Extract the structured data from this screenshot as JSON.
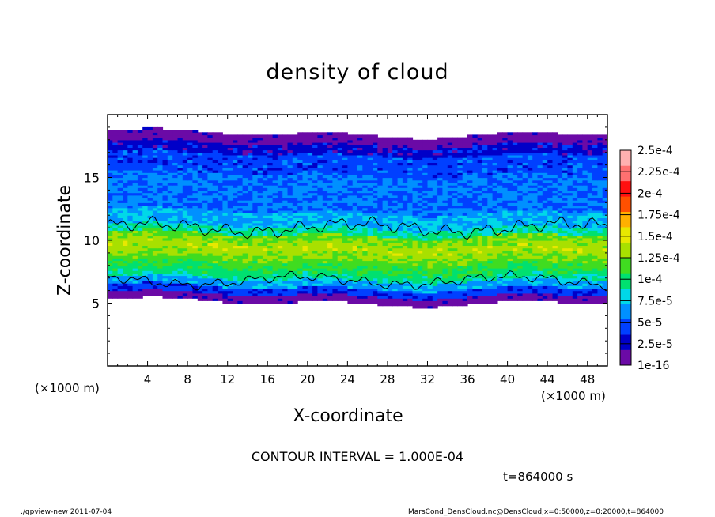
{
  "chart_data": {
    "type": "heatmap",
    "title": "density of cloud",
    "xlabel": "X-coordinate",
    "ylabel": "Z-coordinate",
    "x_unit_left": "(×1000 m)",
    "x_unit_right": "(×1000 m)",
    "xlim": [
      0,
      50
    ],
    "ylim": [
      0,
      20
    ],
    "x_ticks": [
      4,
      8,
      12,
      16,
      20,
      24,
      28,
      32,
      36,
      40,
      44,
      48
    ],
    "y_ticks": [
      5,
      10,
      15
    ],
    "colorbar": {
      "labels": [
        "1e-16",
        "2.5e-5",
        "5e-5",
        "7.5e-5",
        "1e-4",
        "1.25e-4",
        "1.5e-4",
        "1.75e-4",
        "2e-4",
        "2.25e-4",
        "2.5e-4"
      ],
      "colors": [
        "#6b0aa6",
        "#0000c8",
        "#0040ff",
        "#0090ff",
        "#00d8e8",
        "#00e070",
        "#40dc20",
        "#a8e000",
        "#e8e800",
        "#ffb000",
        "#ff5000",
        "#ff1010",
        "#ff7070",
        "#ffb0b0"
      ]
    },
    "cloud_layer": {
      "z_bottom": 5.0,
      "z_top": 18.4,
      "peak_band_center": 9.3,
      "peak_value": 0.00018,
      "contour_level": 0.0001,
      "contour_band": [
        6.8,
        11.0
      ]
    },
    "contour_interval_text": "CONTOUR INTERVAL = 1.000E-04",
    "time_text": "t=864000 s"
  },
  "footer": {
    "left": "./gpview-new   2011-07-04",
    "right": "MarsCond_DensCloud.nc@DensCloud,x=0:50000,z=0:20000,t=864000"
  }
}
